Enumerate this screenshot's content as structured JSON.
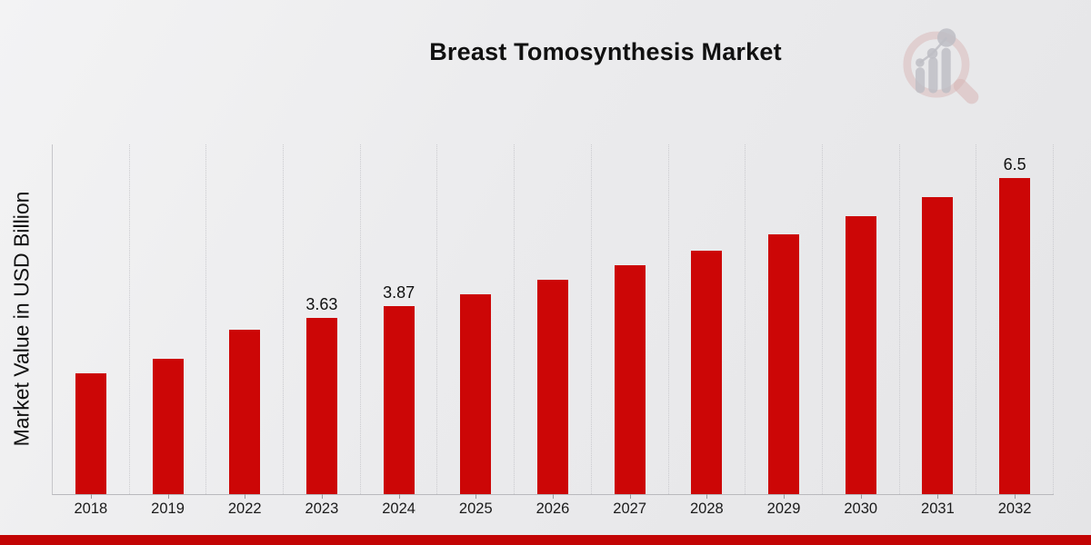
{
  "colors": {
    "bar": "#cc0606",
    "accent_strip": "#c20404",
    "background_start": "#f3f3f4",
    "background_end": "#e5e5e7",
    "gridline": "#cbcbcf",
    "axis_line": "#b9b9bd",
    "text": "#111111",
    "logo_pink": "#d8b6b6",
    "logo_gray": "#bdbdc4"
  },
  "watermark": {
    "name": "magnifier-bar-chart-logo"
  },
  "chart_data": {
    "type": "bar",
    "title": "Breast Tomosynthesis Market",
    "ylabel": "Market Value in USD Billion",
    "xlabel": "",
    "categories": [
      "2018",
      "2019",
      "2022",
      "2023",
      "2024",
      "2025",
      "2026",
      "2027",
      "2028",
      "2029",
      "2030",
      "2031",
      "2032"
    ],
    "values": [
      2.49,
      2.79,
      3.39,
      3.63,
      3.87,
      4.11,
      4.41,
      4.71,
      5.02,
      5.34,
      5.72,
      6.11,
      6.5
    ],
    "shown_labels": [
      "",
      "",
      "",
      "3.63",
      "3.87",
      "",
      "",
      "",
      "",
      "",
      "",
      "",
      "6.5"
    ],
    "ylim": [
      0,
      7.2
    ],
    "grid": "vertical-dotted",
    "legend": "none",
    "y_tick_labels": "none"
  }
}
